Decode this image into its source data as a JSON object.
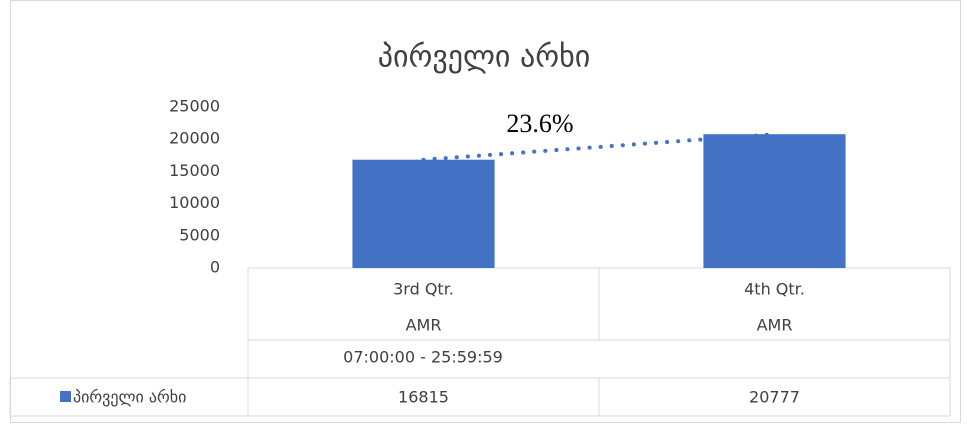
{
  "chart_data": {
    "type": "bar",
    "title": "პირველი არხი",
    "categories": [
      "3rd Qtr.",
      "4th Qtr."
    ],
    "subcategories": [
      "AMR",
      "AMR"
    ],
    "group_label": "07:00:00 - 25:59:59",
    "series": [
      {
        "name": "პირველი არხი",
        "color": "#4472c4",
        "values": [
          16815,
          20777
        ]
      }
    ],
    "annotation": "23.6%",
    "ylim": [
      0,
      25000
    ],
    "yticks": [
      0,
      5000,
      10000,
      15000,
      20000,
      25000
    ],
    "grid": false,
    "data_table": true,
    "trendline": true
  }
}
